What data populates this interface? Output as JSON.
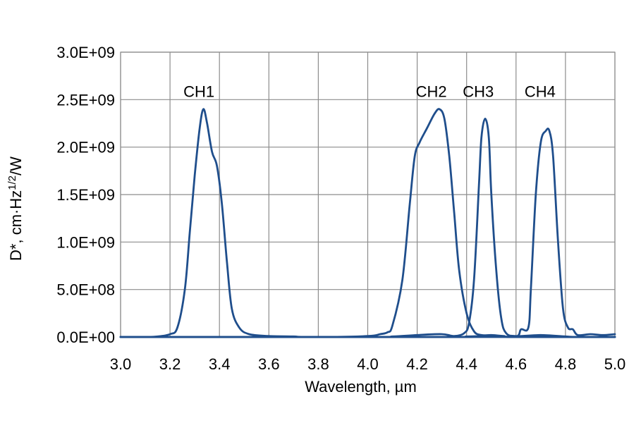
{
  "chart_data": {
    "type": "line",
    "xlabel": "Wavelength, µm",
    "ylabel_prefix": "D*, cm·Hz",
    "ylabel_sup": "1/2",
    "ylabel_suffix": "/W",
    "xlim": [
      3.0,
      5.0
    ],
    "ylim": [
      0,
      3000000000
    ],
    "x_ticks": [
      3.0,
      3.2,
      3.4,
      3.6,
      3.8,
      4.0,
      4.2,
      4.4,
      4.6,
      4.8,
      5.0
    ],
    "x_tick_labels": [
      "3.0",
      "3.2",
      "3.4",
      "3.6",
      "3.8",
      "4.0",
      "4.2",
      "4.4",
      "4.6",
      "4.8",
      "5.0"
    ],
    "y_ticks": [
      0,
      500000000,
      1000000000,
      1500000000,
      2000000000,
      2500000000,
      3000000000
    ],
    "y_tick_labels": [
      "0.0E+00",
      "5.0E+08",
      "1.0E+09",
      "1.5E+09",
      "2.0E+09",
      "2.5E+09",
      "3.0E+09"
    ],
    "grid": true,
    "legend": "none",
    "line_color": "#1f4e8c",
    "series": [
      {
        "label": "CH1",
        "label_at": [
          3.34,
          2550000000.0
        ],
        "points": [
          [
            3.0,
            0
          ],
          [
            3.1,
            0
          ],
          [
            3.15,
            5000000.0
          ],
          [
            3.2,
            30000000.0
          ],
          [
            3.23,
            100000000.0
          ],
          [
            3.26,
            500000000.0
          ],
          [
            3.28,
            1100000000.0
          ],
          [
            3.3,
            1700000000.0
          ],
          [
            3.32,
            2200000000.0
          ],
          [
            3.335,
            2400000000.0
          ],
          [
            3.35,
            2250000000.0
          ],
          [
            3.37,
            1950000000.0
          ],
          [
            3.39,
            1800000000.0
          ],
          [
            3.41,
            1400000000.0
          ],
          [
            3.43,
            800000000.0
          ],
          [
            3.45,
            300000000.0
          ],
          [
            3.48,
            100000000.0
          ],
          [
            3.52,
            30000000.0
          ],
          [
            3.6,
            10000000.0
          ],
          [
            3.7,
            5000000.0
          ],
          [
            3.8,
            0
          ],
          [
            4.4,
            0
          ],
          [
            4.8,
            0
          ],
          [
            5.0,
            0
          ]
        ]
      },
      {
        "label": "CH2",
        "label_at": [
          4.28,
          2550000000.0
        ],
        "points": [
          [
            3.0,
            0
          ],
          [
            3.8,
            0
          ],
          [
            4.0,
            10000000.0
          ],
          [
            4.05,
            30000000.0
          ],
          [
            4.08,
            50000000.0
          ],
          [
            4.1,
            120000000.0
          ],
          [
            4.14,
            600000000.0
          ],
          [
            4.17,
            1400000000.0
          ],
          [
            4.19,
            1900000000.0
          ],
          [
            4.21,
            2050000000.0
          ],
          [
            4.24,
            2200000000.0
          ],
          [
            4.27,
            2350000000.0
          ],
          [
            4.29,
            2400000000.0
          ],
          [
            4.31,
            2300000000.0
          ],
          [
            4.33,
            1900000000.0
          ],
          [
            4.35,
            1300000000.0
          ],
          [
            4.37,
            700000000.0
          ],
          [
            4.4,
            250000000.0
          ],
          [
            4.43,
            60000000.0
          ],
          [
            4.46,
            20000000.0
          ],
          [
            4.5,
            20000000.0
          ],
          [
            4.55,
            10000000.0
          ],
          [
            4.6,
            0
          ],
          [
            5.0,
            0
          ]
        ]
      },
      {
        "label": "CH3",
        "label_at": [
          4.47,
          2550000000.0
        ],
        "points": [
          [
            3.0,
            0
          ],
          [
            4.0,
            0
          ],
          [
            4.1,
            5000000.0
          ],
          [
            4.2,
            20000000.0
          ],
          [
            4.3,
            30000000.0
          ],
          [
            4.35,
            10000000.0
          ],
          [
            4.39,
            40000000.0
          ],
          [
            4.41,
            150000000.0
          ],
          [
            4.43,
            600000000.0
          ],
          [
            4.45,
            1600000000.0
          ],
          [
            4.46,
            2100000000.0
          ],
          [
            4.475,
            2300000000.0
          ],
          [
            4.49,
            2100000000.0
          ],
          [
            4.5,
            1500000000.0
          ],
          [
            4.52,
            700000000.0
          ],
          [
            4.54,
            200000000.0
          ],
          [
            4.56,
            40000000.0
          ],
          [
            4.6,
            10000000.0
          ],
          [
            4.7,
            20000000.0
          ],
          [
            4.8,
            5000000.0
          ],
          [
            4.85,
            0
          ],
          [
            5.0,
            0
          ]
        ]
      },
      {
        "label": "CH4",
        "label_at": [
          4.72,
          2550000000.0
        ],
        "points": [
          [
            3.0,
            0
          ],
          [
            4.3,
            0
          ],
          [
            4.4,
            5000000.0
          ],
          [
            4.5,
            10000000.0
          ],
          [
            4.6,
            5000000.0
          ],
          [
            4.62,
            80000000.0
          ],
          [
            4.65,
            100000000.0
          ],
          [
            4.66,
            500000000.0
          ],
          [
            4.68,
            1500000000.0
          ],
          [
            4.7,
            2050000000.0
          ],
          [
            4.72,
            2170000000.0
          ],
          [
            4.735,
            2170000000.0
          ],
          [
            4.75,
            1900000000.0
          ],
          [
            4.77,
            1000000000.0
          ],
          [
            4.79,
            300000000.0
          ],
          [
            4.81,
            100000000.0
          ],
          [
            4.83,
            80000000.0
          ],
          [
            4.85,
            20000000.0
          ],
          [
            4.9,
            30000000.0
          ],
          [
            4.95,
            20000000.0
          ],
          [
            5.0,
            30000000.0
          ]
        ]
      }
    ]
  }
}
